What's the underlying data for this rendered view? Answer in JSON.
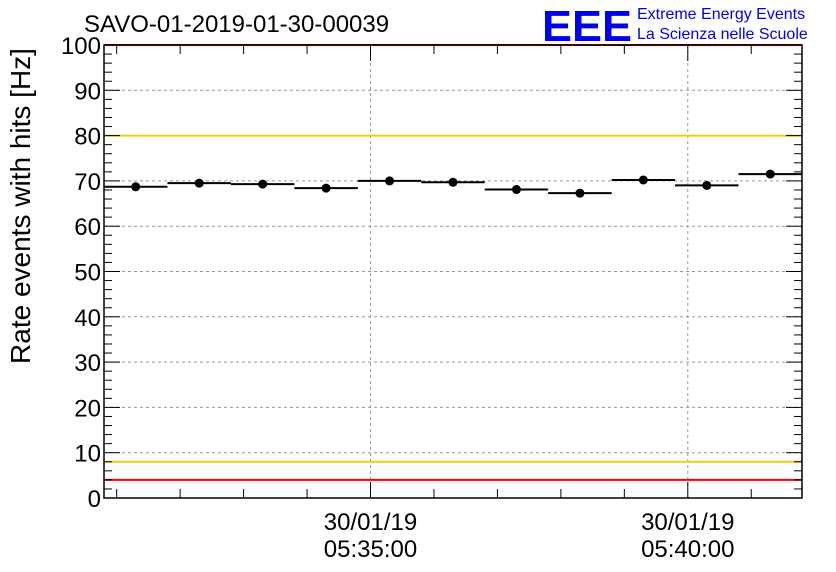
{
  "chart_data": {
    "type": "scatter",
    "title": "SAVO-01-2019-01-30-00039",
    "ylabel": "Rate events with hits [Hz]",
    "xlabel": "",
    "ylim": [
      0,
      100
    ],
    "yticks": [
      0,
      10,
      20,
      30,
      40,
      50,
      60,
      70,
      80,
      90,
      100
    ],
    "grid": true,
    "x_range_minutes": [
      -4.2,
      6.8
    ],
    "x_tick_labels": [
      {
        "minute": 0,
        "date": "30/01/19",
        "time": "05:35:00"
      },
      {
        "minute": 5,
        "date": "30/01/19",
        "time": "05:40:00"
      }
    ],
    "bin_width_minutes": 1,
    "series": [
      {
        "name": "rate",
        "x": [
          -3.7,
          -2.7,
          -1.7,
          -0.7,
          0.3,
          1.3,
          2.3,
          3.3,
          4.3,
          5.3,
          6.3
        ],
        "values": [
          68.7,
          69.5,
          69.3,
          68.4,
          70.0,
          69.7,
          68.1,
          67.3,
          70.2,
          69.0,
          71.5
        ]
      }
    ],
    "reference_lines": [
      {
        "y": 100,
        "color": "#ff0000"
      },
      {
        "y": 80,
        "color": "#f2cc0c"
      },
      {
        "y": 8,
        "color": "#f2cc0c"
      },
      {
        "y": 4,
        "color": "#ff0000"
      }
    ]
  },
  "logo": {
    "mark": "EEE",
    "line1": "Extreme Energy Events",
    "line2": "La Scienza nelle Scuole",
    "color": "#0000ee"
  }
}
